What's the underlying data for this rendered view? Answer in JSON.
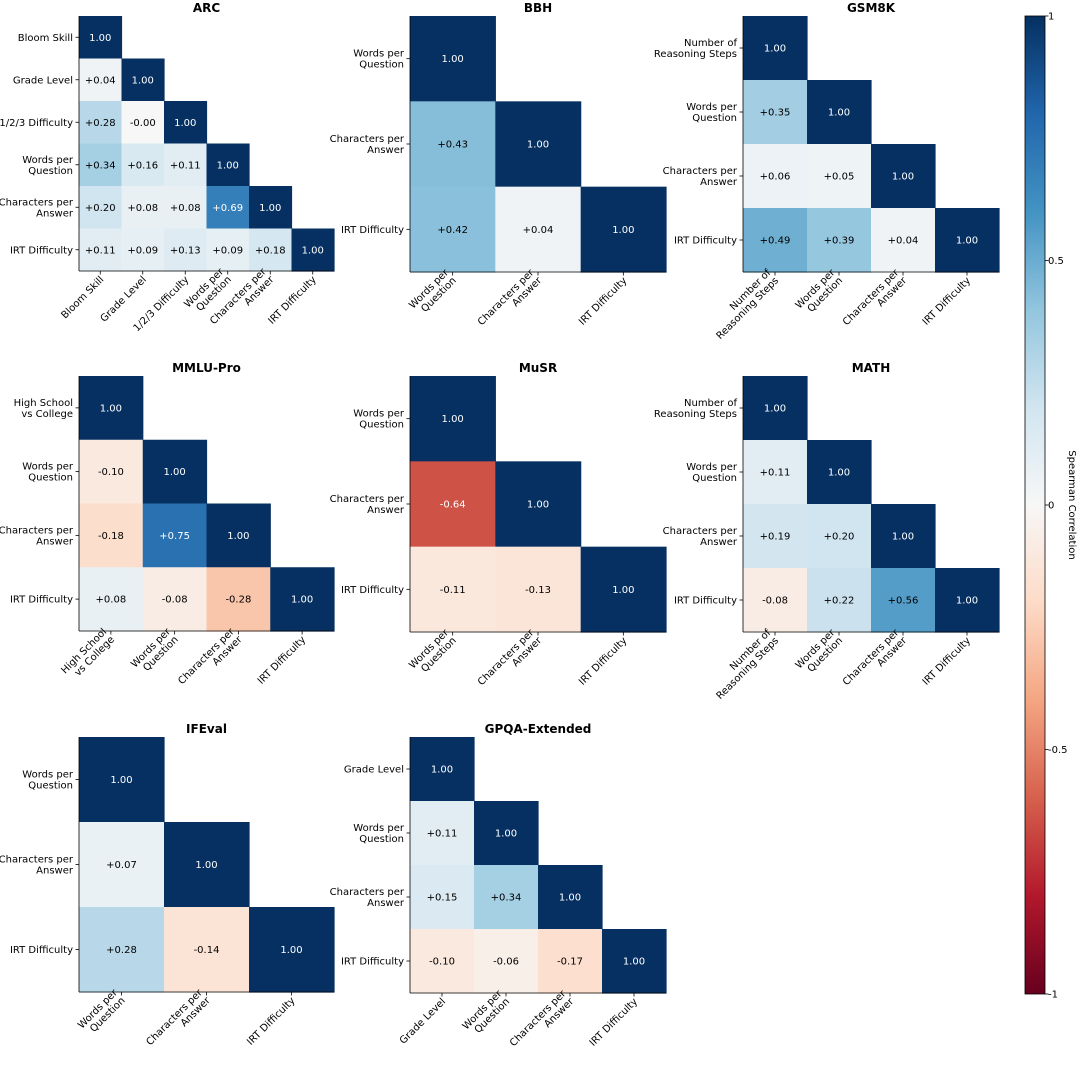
{
  "colorbar": {
    "label": "Spearman Correlation",
    "ticks": [
      "1",
      "0.5",
      "0",
      "-0.5",
      "-1"
    ],
    "range": [
      -1,
      1
    ]
  },
  "chart_data": [
    {
      "type": "heatmap",
      "title": "ARC",
      "labels": [
        [
          "Bloom Skill"
        ],
        [
          "Grade Level"
        ],
        [
          "1/2/3 Difficulty"
        ],
        [
          "Words per",
          "Question"
        ],
        [
          "Characters per",
          "Answer"
        ],
        [
          "IRT Difficulty"
        ]
      ],
      "matrix": [
        [
          1.0
        ],
        [
          0.04,
          1.0
        ],
        [
          0.28,
          -0.0,
          1.0
        ],
        [
          0.34,
          0.16,
          0.11,
          1.0
        ],
        [
          0.2,
          0.08,
          0.08,
          0.69,
          1.0
        ],
        [
          0.11,
          0.09,
          0.13,
          0.09,
          0.18,
          1.0
        ]
      ],
      "cell_text": [
        [
          "1.00"
        ],
        [
          "+0.04",
          "1.00"
        ],
        [
          "+0.28",
          "-0.00",
          "1.00"
        ],
        [
          "+0.34",
          "+0.16",
          "+0.11",
          "1.00"
        ],
        [
          "+0.20",
          "+0.08",
          "+0.08",
          "+0.69",
          "1.00"
        ],
        [
          "+0.11",
          "+0.09",
          "+0.13",
          "+0.09",
          "+0.18",
          "1.00"
        ]
      ]
    },
    {
      "type": "heatmap",
      "title": "BBH",
      "labels": [
        [
          "Words per",
          "Question"
        ],
        [
          "Characters per",
          "Answer"
        ],
        [
          "IRT Difficulty"
        ]
      ],
      "matrix": [
        [
          1.0
        ],
        [
          0.43,
          1.0
        ],
        [
          0.42,
          0.04,
          1.0
        ]
      ],
      "cell_text": [
        [
          "1.00"
        ],
        [
          "+0.43",
          "1.00"
        ],
        [
          "+0.42",
          "+0.04",
          "1.00"
        ]
      ]
    },
    {
      "type": "heatmap",
      "title": "GSM8K",
      "labels": [
        [
          "Number of",
          "Reasoning Steps"
        ],
        [
          "Words per",
          "Question"
        ],
        [
          "Characters per",
          "Answer"
        ],
        [
          "IRT Difficulty"
        ]
      ],
      "matrix": [
        [
          1.0
        ],
        [
          0.35,
          1.0
        ],
        [
          0.06,
          0.05,
          1.0
        ],
        [
          0.49,
          0.39,
          0.04,
          1.0
        ]
      ],
      "cell_text": [
        [
          "1.00"
        ],
        [
          "+0.35",
          "1.00"
        ],
        [
          "+0.06",
          "+0.05",
          "1.00"
        ],
        [
          "+0.49",
          "+0.39",
          "+0.04",
          "1.00"
        ]
      ]
    },
    {
      "type": "heatmap",
      "title": "MMLU-Pro",
      "labels": [
        [
          "High School",
          "vs College"
        ],
        [
          "Words per",
          "Question"
        ],
        [
          "Characters per",
          "Answer"
        ],
        [
          "IRT Difficulty"
        ]
      ],
      "matrix": [
        [
          1.0
        ],
        [
          -0.1,
          1.0
        ],
        [
          -0.18,
          0.75,
          1.0
        ],
        [
          0.08,
          -0.08,
          -0.28,
          1.0
        ]
      ],
      "cell_text": [
        [
          "1.00"
        ],
        [
          "-0.10",
          "1.00"
        ],
        [
          "-0.18",
          "+0.75",
          "1.00"
        ],
        [
          "+0.08",
          "-0.08",
          "-0.28",
          "1.00"
        ]
      ]
    },
    {
      "type": "heatmap",
      "title": "MuSR",
      "labels": [
        [
          "Words per",
          "Question"
        ],
        [
          "Characters per",
          "Answer"
        ],
        [
          "IRT Difficulty"
        ]
      ],
      "matrix": [
        [
          1.0
        ],
        [
          -0.64,
          1.0
        ],
        [
          -0.11,
          -0.13,
          1.0
        ]
      ],
      "cell_text": [
        [
          "1.00"
        ],
        [
          "-0.64",
          "1.00"
        ],
        [
          "-0.11",
          "-0.13",
          "1.00"
        ]
      ]
    },
    {
      "type": "heatmap",
      "title": "MATH",
      "labels": [
        [
          "Number of",
          "Reasoning Steps"
        ],
        [
          "Words per",
          "Question"
        ],
        [
          "Characters per",
          "Answer"
        ],
        [
          "IRT Difficulty"
        ]
      ],
      "matrix": [
        [
          1.0
        ],
        [
          0.11,
          1.0
        ],
        [
          0.19,
          0.2,
          1.0
        ],
        [
          -0.08,
          0.22,
          0.56,
          1.0
        ]
      ],
      "cell_text": [
        [
          "1.00"
        ],
        [
          "+0.11",
          "1.00"
        ],
        [
          "+0.19",
          "+0.20",
          "1.00"
        ],
        [
          "-0.08",
          "+0.22",
          "+0.56",
          "1.00"
        ]
      ]
    },
    {
      "type": "heatmap",
      "title": "IFEval",
      "labels": [
        [
          "Words per",
          "Question"
        ],
        [
          "Characters per",
          "Answer"
        ],
        [
          "IRT Difficulty"
        ]
      ],
      "matrix": [
        [
          1.0
        ],
        [
          0.07,
          1.0
        ],
        [
          0.28,
          -0.14,
          1.0
        ]
      ],
      "cell_text": [
        [
          "1.00"
        ],
        [
          "+0.07",
          "1.00"
        ],
        [
          "+0.28",
          "-0.14",
          "1.00"
        ]
      ]
    },
    {
      "type": "heatmap",
      "title": "GPQA-Extended",
      "labels": [
        [
          "Grade Level"
        ],
        [
          "Words per",
          "Question"
        ],
        [
          "Characters per",
          "Answer"
        ],
        [
          "IRT Difficulty"
        ]
      ],
      "matrix": [
        [
          1.0
        ],
        [
          0.11,
          1.0
        ],
        [
          0.15,
          0.34,
          1.0
        ],
        [
          -0.1,
          -0.06,
          -0.17,
          1.0
        ]
      ],
      "cell_text": [
        [
          "1.00"
        ],
        [
          "+0.11",
          "1.00"
        ],
        [
          "+0.15",
          "+0.34",
          "1.00"
        ],
        [
          "-0.10",
          "-0.06",
          "-0.17",
          "1.00"
        ]
      ]
    }
  ]
}
